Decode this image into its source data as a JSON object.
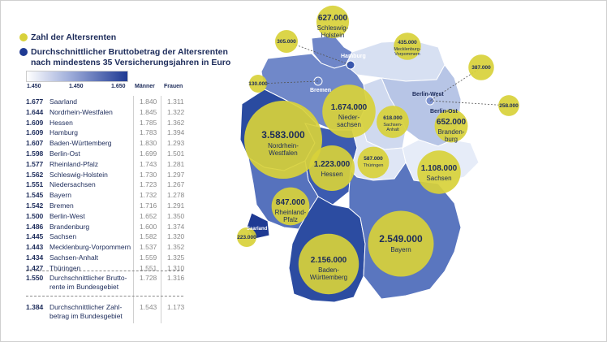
{
  "legend": {
    "count_label": "Zahl der Altersrenten",
    "amount_label_line1": "Durchschnittlicher Bruttobetrag der Altersrenten",
    "amount_label_line2": "nach mindestens 35 Versicherungsjahren in Euro",
    "count_color": "#d8d13a",
    "amount_color": "#1f3a93"
  },
  "scale": {
    "labels": [
      "1.450",
      "1.450",
      "1.650"
    ],
    "min": 1450,
    "max": 1650
  },
  "columns": {
    "men": "Männer",
    "women": "Frauen"
  },
  "table": [
    {
      "value": "1.677",
      "name": "Saarland",
      "men": "1.840",
      "women": "1.311"
    },
    {
      "value": "1.644",
      "name": "Nordrhein-Westfalen",
      "men": "1.845",
      "women": "1.322"
    },
    {
      "value": "1.609",
      "name": "Hessen",
      "men": "1.785",
      "women": "1.362"
    },
    {
      "value": "1.609",
      "name": "Hamburg",
      "men": "1.783",
      "women": "1.394"
    },
    {
      "value": "1.607",
      "name": "Baden-Württemberg",
      "men": "1.830",
      "women": "1.293"
    },
    {
      "value": "1.598",
      "name": "Berlin-Ost",
      "men": "1.699",
      "women": "1.501"
    },
    {
      "value": "1.577",
      "name": "Rheinland-Pfalz",
      "men": "1.743",
      "women": "1.281"
    },
    {
      "value": "1.562",
      "name": "Schleswig-Holstein",
      "men": "1.730",
      "women": "1.297"
    },
    {
      "value": "1.551",
      "name": "Niedersachsen",
      "men": "1.723",
      "women": "1.267"
    },
    {
      "value": "1.545",
      "name": "Bayern",
      "men": "1.732",
      "women": "1.278"
    },
    {
      "value": "1.542",
      "name": "Bremen",
      "men": "1.716",
      "women": "1.291"
    },
    {
      "value": "1.500",
      "name": "Berlin-West",
      "men": "1.652",
      "women": "1.350"
    },
    {
      "value": "1.486",
      "name": "Brandenburg",
      "men": "1.600",
      "women": "1.374"
    },
    {
      "value": "1.445",
      "name": "Sachsen",
      "men": "1.582",
      "women": "1.320"
    },
    {
      "value": "1.443",
      "name": "Mecklenburg-Vorpommern",
      "men": "1.537",
      "women": "1.352"
    },
    {
      "value": "1.434",
      "name": "Sachsen-Anhalt",
      "men": "1.559",
      "women": "1.325"
    },
    {
      "value": "1.427",
      "name": "Thüringen",
      "men": "1.551",
      "women": "1.310"
    }
  ],
  "summary": [
    {
      "value": "1.550",
      "line1": "Durchschnittlicher Brutto-",
      "line2": "rente im Bundesgebiet",
      "men": "1.728",
      "women": "1.316"
    },
    {
      "value": "1.384",
      "line1": "Durchschnittlicher Zahl-",
      "line2": "betrag im Bundesgebiet",
      "men": "1.543",
      "women": "1.173"
    }
  ],
  "map": {
    "bubbles": [
      {
        "id": "nrw",
        "value": "3.583.000",
        "name": "Nordrhein-\nWestfalen",
        "count": 3583000
      },
      {
        "id": "by",
        "value": "2.549.000",
        "name": "Bayern",
        "count": 2549000
      },
      {
        "id": "bw",
        "value": "2.156.000",
        "name": "Baden-\nWürttemberg",
        "count": 2156000
      },
      {
        "id": "ni",
        "value": "1.674.000",
        "name": "Nieder-\nsachsen",
        "count": 1674000
      },
      {
        "id": "he",
        "value": "1.223.000",
        "name": "Hessen",
        "count": 1223000
      },
      {
        "id": "sn",
        "value": "1.108.000",
        "name": "Sachsen",
        "count": 1108000
      },
      {
        "id": "rp",
        "value": "847.000",
        "name": "Rheinland-\nPfalz",
        "count": 847000
      },
      {
        "id": "bb",
        "value": "652.000",
        "name": "Branden-\nburg",
        "count": 652000
      },
      {
        "id": "sh",
        "value": "627.000",
        "name": "Schleswig-\nHolstein",
        "count": 627000
      },
      {
        "id": "st",
        "value": "618.000",
        "name": "Sachsen-\nAnhalt",
        "count": 618000
      },
      {
        "id": "th",
        "value": "587.000",
        "name": "Thüringen",
        "count": 587000
      },
      {
        "id": "mv",
        "value": "435.000",
        "name": "Mecklenburg-\nVorpommern",
        "count": 435000
      },
      {
        "id": "bo",
        "value": "387.000",
        "name": "",
        "count": 387000
      },
      {
        "id": "hh",
        "value": "305.000",
        "name": "",
        "count": 305000
      },
      {
        "id": "bw2",
        "value": "258.000",
        "name": "",
        "count": 258000
      },
      {
        "id": "sl",
        "value": "223.000",
        "name": "",
        "count": 223000
      },
      {
        "id": "hb",
        "value": "130.000",
        "name": "",
        "count": 130000
      }
    ],
    "labels": {
      "hamburg": "Hamburg",
      "bremen": "Bremen",
      "berlin_west": "Berlin-West",
      "berlin_ost": "Berlin-Ost",
      "saarland": "Saarland"
    }
  }
}
